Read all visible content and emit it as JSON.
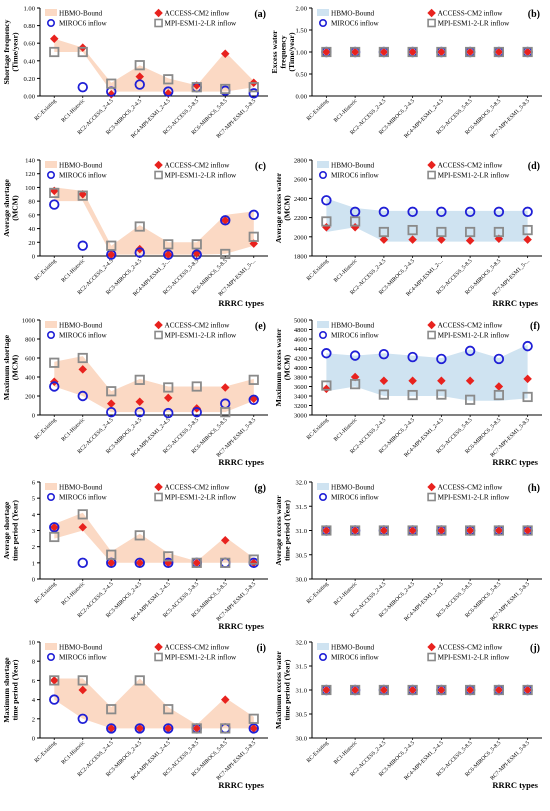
{
  "legend_labels": {
    "hbmo": "HBMO-Bound",
    "access": "ACCESS-CM2 inflow",
    "miroc": "MIROC6 inflow",
    "mpi": "MPI-ESM1-2-LR inflow"
  },
  "colors": {
    "band": "#fbd9c4",
    "band_blue": "#cfe3f1",
    "access": "#e8221e",
    "miroc": "#1f1fd6",
    "mpi": "#8a8a8a",
    "axis": "#000000"
  },
  "chart_data": [
    {
      "panel": "(a)",
      "type": "scatter",
      "ylabel": "Shortage frequency (Time/year)",
      "xlabel": "",
      "categories": [
        "RC-Existing",
        "RC1-Historic",
        "RC2-ACCESS_2-4.5",
        "RC3-MIROC6_2-4.5",
        "RC4-MPI-ESM1_2-4.5",
        "RC5-ACCESS_5-8.5",
        "RC6-MIROC6_5-8.5",
        "RC7-MPI-ESM1_5-8.5"
      ],
      "ylim": [
        0,
        1.0
      ],
      "yticks": [
        0,
        0.2,
        0.4,
        0.6,
        0.8,
        1.0
      ],
      "ytick_labels": [
        "0.00",
        "0.20",
        "0.40",
        "0.60",
        "0.80",
        "1.00"
      ],
      "band_type": "orange",
      "band": {
        "lower": [
          0.5,
          0.5,
          0.05,
          0.05,
          0.05,
          0.05,
          0.05,
          0.1
        ],
        "upper": [
          0.65,
          0.55,
          0.15,
          0.35,
          0.2,
          0.12,
          0.5,
          0.17
        ]
      },
      "series": [
        {
          "key": "access",
          "values": [
            0.65,
            0.55,
            0.02,
            0.22,
            0.03,
            0.12,
            0.48,
            0.15
          ]
        },
        {
          "key": "miroc",
          "values": [
            null,
            0.1,
            0.05,
            0.13,
            0.05,
            0.1,
            0.06,
            0.03
          ]
        },
        {
          "key": "mpi",
          "values": [
            0.5,
            0.5,
            0.14,
            0.35,
            0.19,
            0.1,
            0.08,
            0.1
          ]
        }
      ]
    },
    {
      "panel": "(b)",
      "type": "scatter",
      "ylabel": "Excess water frequency (Time/year)",
      "xlabel": "",
      "categories": [
        "RC-Existing",
        "RC1-Historic",
        "RC2-ACCESS_2-4.5",
        "RC3-MIROC6_2-4.5",
        "RC4-MPI-ESM1_2-4.5",
        "RC5-ACCESS_5-8.5",
        "RC6-MIROC6_5-8.5",
        "RC7-MPI-ESM1_5-8.5"
      ],
      "ylim": [
        0,
        2.0
      ],
      "yticks": [
        0,
        0.5,
        1.0,
        1.5,
        2.0
      ],
      "ytick_labels": [
        "0.00",
        "0.50",
        "1.00",
        "1.50",
        "2.00"
      ],
      "band_type": "none",
      "band": null,
      "series": [
        {
          "key": "access",
          "values": [
            1,
            1,
            1,
            1,
            1,
            1,
            1,
            1
          ]
        },
        {
          "key": "miroc",
          "values": [
            1,
            1,
            1,
            1,
            1,
            1,
            1,
            1
          ]
        },
        {
          "key": "mpi",
          "values": [
            1,
            1,
            1,
            1,
            1,
            1,
            1,
            1
          ]
        }
      ]
    },
    {
      "panel": "(c)",
      "type": "scatter",
      "ylabel": "Average shortage (MCM)",
      "xlabel": "RRRC types",
      "categories": [
        "RC-Existing",
        "RC1-Historic",
        "RC2-ACCESS_2-4.5",
        "RC3-MIROC6_2-4.5",
        "RC4-MPI-ESM1_2-...",
        "RC5-ACCESS_5-8.5",
        "RC6-MIROC6_5-8.5",
        "RC7-MPI-ESM1_5-..."
      ],
      "ylim": [
        0,
        140
      ],
      "yticks": [
        0,
        20,
        40,
        60,
        80,
        100,
        120,
        140
      ],
      "ytick_labels": [
        "0",
        "20",
        "40",
        "60",
        "80",
        "100",
        "120",
        "140"
      ],
      "band_type": "orange",
      "band": {
        "lower": [
          80,
          80,
          2,
          2,
          2,
          2,
          3,
          15
        ],
        "upper": [
          100,
          95,
          15,
          45,
          20,
          20,
          60,
          65
        ]
      },
      "series": [
        {
          "key": "access",
          "values": [
            95,
            90,
            2,
            10,
            2,
            4,
            52,
            18
          ]
        },
        {
          "key": "miroc",
          "values": [
            75,
            15,
            2,
            5,
            2,
            2,
            52,
            60
          ]
        },
        {
          "key": "mpi",
          "values": [
            92,
            88,
            15,
            43,
            17,
            17,
            3,
            28
          ]
        }
      ]
    },
    {
      "panel": "(d)",
      "type": "scatter",
      "ylabel": "Average excess water (MCM)",
      "xlabel": "RRRC types",
      "categories": [
        "RC-Existing",
        "RC1-Historic",
        "RC2-ACCESS_2-4.5",
        "RC3-MIROC6_2-4.5",
        "RC4-MPI-ESM1_2-...",
        "RC5-ACCESS_5-8.5",
        "RC6-MIROC6_5-8.5",
        "RC7-MPI-ESM1_5-..."
      ],
      "ylim": [
        1800,
        2800
      ],
      "yticks": [
        1800,
        2000,
        2200,
        2400,
        2600,
        2800
      ],
      "ytick_labels": [
        "1800",
        "2000",
        "2200",
        "2400",
        "2600",
        "2800"
      ],
      "band_type": "blue",
      "band": {
        "lower": [
          2050,
          2100,
          1950,
          1950,
          1950,
          1950,
          1950,
          1950
        ],
        "upper": [
          2400,
          2300,
          2270,
          2270,
          2270,
          2270,
          2270,
          2270
        ]
      },
      "series": [
        {
          "key": "access",
          "values": [
            2100,
            2100,
            1970,
            1970,
            1970,
            1960,
            1980,
            1970
          ]
        },
        {
          "key": "miroc",
          "values": [
            2380,
            2260,
            2260,
            2260,
            2260,
            2260,
            2260,
            2260
          ]
        },
        {
          "key": "mpi",
          "values": [
            2160,
            2160,
            2050,
            2070,
            2050,
            2050,
            2050,
            2070
          ]
        }
      ]
    },
    {
      "panel": "(e)",
      "type": "scatter",
      "ylabel": "Maximum shortage (MCM)",
      "xlabel": "RRRC types",
      "categories": [
        "RC-Existing",
        "RC1-Historic",
        "RC2-ACCESS_2-4.5",
        "RC3-MIROC6_2-4.5",
        "RC4-MPI-ESM1_2-4.5",
        "RC5-ACCESS_5-8.5",
        "RC6-MIROC6_5-8.5",
        "RC7-MPI-ESM1_5-8.5"
      ],
      "ylim": [
        0,
        1000
      ],
      "yticks": [
        0,
        200,
        400,
        600,
        800,
        1000
      ],
      "ytick_labels": [
        "0",
        "200",
        "400",
        "600",
        "800",
        "1000"
      ],
      "band_type": "orange",
      "band": {
        "lower": [
          300,
          200,
          30,
          30,
          30,
          30,
          30,
          150
        ],
        "upper": [
          560,
          620,
          250,
          380,
          300,
          300,
          300,
          380
        ]
      },
      "series": [
        {
          "key": "access",
          "values": [
            350,
            480,
            120,
            140,
            180,
            70,
            290,
            170
          ]
        },
        {
          "key": "miroc",
          "values": [
            300,
            200,
            30,
            30,
            20,
            30,
            120,
            160
          ]
        },
        {
          "key": "mpi",
          "values": [
            550,
            600,
            250,
            370,
            290,
            300,
            30,
            370
          ]
        }
      ]
    },
    {
      "panel": "(f)",
      "type": "scatter",
      "ylabel": "Maximum excess water (MCM)",
      "xlabel": "RRRC types",
      "categories": [
        "RC-Existing",
        "RC1-Historic",
        "RC2-ACCESS_2-4.5",
        "RC3-MIROC6_2-4.5",
        "RC4-MPI-ESM1_2-4.5",
        "RC5-ACCESS_5-8.5",
        "RC6-MIROC6_5-8.5",
        "RC7-MPI-ESM1_5-8.5"
      ],
      "ylim": [
        3000,
        5000
      ],
      "yticks": [
        3000,
        3200,
        3400,
        3600,
        3800,
        4000,
        4200,
        4400,
        4600,
        4800,
        5000
      ],
      "ytick_labels": [
        "3000",
        "3200",
        "3400",
        "3600",
        "3800",
        "4000",
        "4200",
        "4400",
        "4600",
        "4800",
        "5000"
      ],
      "band_type": "blue",
      "band": {
        "lower": [
          3500,
          3600,
          3400,
          3400,
          3400,
          3300,
          3300,
          3350
        ],
        "upper": [
          4300,
          4250,
          4300,
          4250,
          4200,
          4380,
          4200,
          4480
        ]
      },
      "series": [
        {
          "key": "access",
          "values": [
            3550,
            3800,
            3720,
            3720,
            3720,
            3720,
            3600,
            3760
          ]
        },
        {
          "key": "miroc",
          "values": [
            4300,
            4250,
            4280,
            4220,
            4180,
            4350,
            4180,
            4450
          ]
        },
        {
          "key": "mpi",
          "values": [
            3620,
            3650,
            3430,
            3420,
            3430,
            3320,
            3420,
            3380
          ]
        }
      ]
    },
    {
      "panel": "(g)",
      "type": "scatter",
      "ylabel": "Average shortage time period (Year)",
      "xlabel": "RRRC types",
      "categories": [
        "RC-Existing",
        "RC1-Historic",
        "RC2-ACCESS_2-4.5",
        "RC3-MIROC6_2-4.5",
        "RC4-MPI-ESM1_2-4.5",
        "RC5-ACCESS_5-8.5",
        "RC6-MIROC6_5-8.5",
        "RC7-MPI-ESM1_5-8.5"
      ],
      "ylim": [
        0,
        6
      ],
      "yticks": [
        0,
        1,
        2,
        3,
        4,
        5,
        6
      ],
      "ytick_labels": [
        "0",
        "1",
        "2",
        "3",
        "4",
        "5",
        "6"
      ],
      "band_type": "orange",
      "band": {
        "lower": [
          2.5,
          3.0,
          1.0,
          1.0,
          1.0,
          1.0,
          1.0,
          1.0
        ],
        "upper": [
          3.4,
          4.1,
          1.7,
          2.8,
          1.6,
          1.1,
          2.6,
          1.3
        ]
      },
      "series": [
        {
          "key": "access",
          "values": [
            3.2,
            3.2,
            1.0,
            1.0,
            1.0,
            1.0,
            2.4,
            1.0
          ]
        },
        {
          "key": "miroc",
          "values": [
            3.2,
            1.0,
            1.0,
            1.0,
            1.0,
            1.0,
            1.0,
            1.0
          ]
        },
        {
          "key": "mpi",
          "values": [
            2.6,
            4.0,
            1.5,
            2.7,
            1.4,
            1.0,
            1.0,
            1.2
          ]
        }
      ]
    },
    {
      "panel": "(h)",
      "type": "scatter",
      "ylabel": "Average excess water time period (Year)",
      "xlabel": "RRRC types",
      "categories": [
        "RC-Existing",
        "RC1-Historic",
        "RC2-ACCESS_2-4.5",
        "RC3-MIROC6_2-4.5",
        "RC4-MPI-ESM1_2-4.5",
        "RC5-ACCESS_5-8.5",
        "RC6-MIROC6_5-8.5",
        "RC7-MPI-ESM1_5-8.5"
      ],
      "ylim": [
        30.0,
        32.0
      ],
      "yticks": [
        30.0,
        30.5,
        31.0,
        31.5,
        32.0
      ],
      "ytick_labels": [
        "30.0",
        "30.5",
        "31.0",
        "31.5",
        "32.0"
      ],
      "band_type": "none",
      "band": null,
      "series": [
        {
          "key": "access",
          "values": [
            31,
            31,
            31,
            31,
            31,
            31,
            31,
            31
          ]
        },
        {
          "key": "miroc",
          "values": [
            31,
            31,
            31,
            31,
            31,
            31,
            31,
            31
          ]
        },
        {
          "key": "mpi",
          "values": [
            31,
            31,
            31,
            31,
            31,
            31,
            31,
            31
          ]
        }
      ]
    },
    {
      "panel": "(i)",
      "type": "scatter",
      "ylabel": "Maximum shortage time period (Year)",
      "xlabel": "RRRC types",
      "categories": [
        "RC-Existing",
        "RC1-Historic",
        "RC2-ACCESS_2-4.5",
        "RC3-MIROC6_2-4.5",
        "RC4-MPI-ESM1_2-4.5",
        "RC5-ACCESS_5-8.5",
        "RC6-MIROC6_5-8.5",
        "RC7-MPI-ESM1_5-8.5"
      ],
      "ylim": [
        0,
        10
      ],
      "yticks": [
        0,
        2,
        4,
        6,
        8,
        10
      ],
      "ytick_labels": [
        "0",
        "2",
        "4",
        "6",
        "8",
        "10"
      ],
      "band_type": "orange",
      "band": {
        "lower": [
          4,
          2,
          1,
          1,
          1,
          1,
          1,
          1
        ],
        "upper": [
          6.2,
          6.2,
          3.2,
          6.2,
          3.2,
          1.4,
          4.2,
          2.2
        ]
      },
      "series": [
        {
          "key": "access",
          "values": [
            6,
            5,
            1,
            1,
            1,
            1,
            4,
            1
          ]
        },
        {
          "key": "miroc",
          "values": [
            4,
            2,
            1,
            1,
            1,
            1,
            1,
            1
          ]
        },
        {
          "key": "mpi",
          "values": [
            6,
            6,
            3,
            6,
            3,
            1,
            1,
            2
          ]
        }
      ]
    },
    {
      "panel": "(j)",
      "type": "scatter",
      "ylabel": "Maximum excess water time period (Year)",
      "xlabel": "RRRC types",
      "categories": [
        "RC-Existing",
        "RC1-Historic",
        "RC2-ACCESS_2-4.5",
        "RC3-MIROC6_2-4.5",
        "RC4-MPI-ESM1_2-4.5",
        "RC5-ACCESS_5-8.5",
        "RC6-MIROC6_5-8.5",
        "RC7-MPI-ESM1_5-8.5"
      ],
      "ylim": [
        30.0,
        32.0
      ],
      "yticks": [
        30.0,
        30.5,
        31.0,
        31.5,
        32.0
      ],
      "ytick_labels": [
        "30.0",
        "30.5",
        "31.0",
        "31.5",
        "32.0"
      ],
      "band_type": "none",
      "band": null,
      "series": [
        {
          "key": "access",
          "values": [
            31,
            31,
            31,
            31,
            31,
            31,
            31,
            31
          ]
        },
        {
          "key": "miroc",
          "values": [
            31,
            31,
            31,
            31,
            31,
            31,
            31,
            31
          ]
        },
        {
          "key": "mpi",
          "values": [
            31,
            31,
            31,
            31,
            31,
            31,
            31,
            31
          ]
        }
      ]
    }
  ]
}
